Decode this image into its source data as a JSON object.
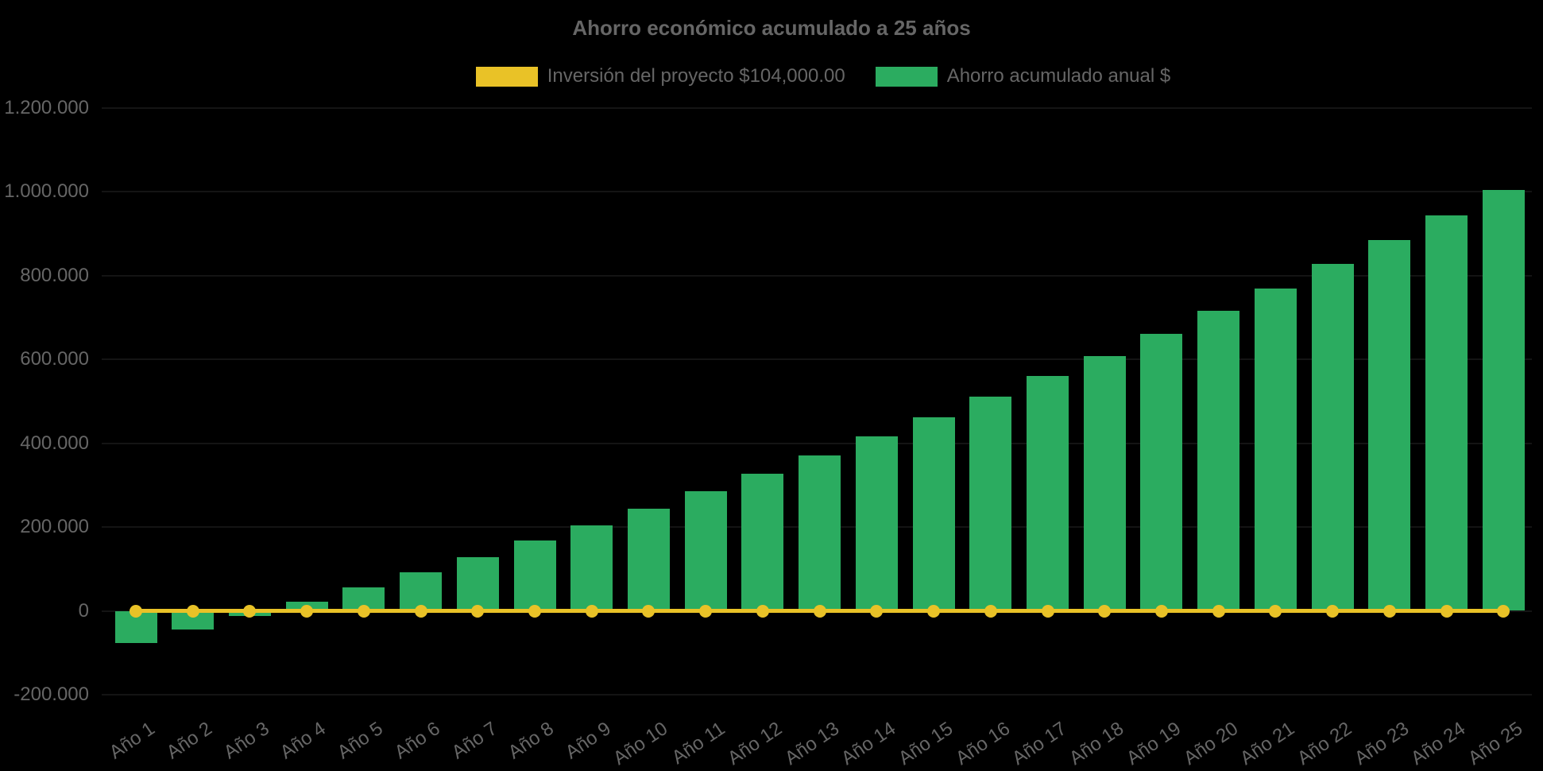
{
  "page": {
    "background": "#000000",
    "text_color": "#666666"
  },
  "chart": {
    "title": "Ahorro económico acumulado a 25 años",
    "legend": [
      {
        "label": "Inversión del proyecto $104,000.00",
        "color": "#E9C227",
        "series_type": "line"
      },
      {
        "label": "Ahorro acumulado anual $",
        "color": "#2BAC60",
        "series_type": "bar"
      }
    ]
  },
  "chart_data": {
    "type": "bar",
    "title": "Ahorro económico acumulado a 25 años",
    "categories": [
      "Año 1",
      "Año 2",
      "Año 3",
      "Año 4",
      "Año 5",
      "Año 6",
      "Año 7",
      "Año 8",
      "Año 9",
      "Año 10",
      "Año 11",
      "Año 12",
      "Año 13",
      "Año 14",
      "Año 15",
      "Año 16",
      "Año 17",
      "Año 18",
      "Año 19",
      "Año 20",
      "Año 21",
      "Año 22",
      "Año 23",
      "Año 24",
      "Año 25"
    ],
    "series": [
      {
        "name": "Inversión del proyecto $104,000.00",
        "type": "line",
        "color": "#E9C227",
        "point_style": "circle",
        "values": [
          0,
          0,
          0,
          0,
          0,
          0,
          0,
          0,
          0,
          0,
          0,
          0,
          0,
          0,
          0,
          0,
          0,
          0,
          0,
          0,
          0,
          0,
          0,
          0,
          0
        ]
      },
      {
        "name": "Ahorro acumulado anual $",
        "type": "bar",
        "color": "#2BAC60",
        "values": [
          -77000,
          -45000,
          -12000,
          22000,
          56000,
          92000,
          128000,
          167000,
          203000,
          244000,
          286000,
          327000,
          370000,
          416000,
          461000,
          510000,
          560000,
          608000,
          661000,
          715000,
          768000,
          827000,
          885000,
          944000,
          1003000
        ]
      }
    ],
    "xlabel": "",
    "ylabel": "",
    "ylim": [
      -200000,
      1200000
    ],
    "ytick_step": 200000,
    "ytick_labels": [
      "-200.000",
      "0",
      "200.000",
      "400.000",
      "600.000",
      "800.000",
      "1.000.000",
      "1.200.000"
    ],
    "x_tick_rotation_deg": -34,
    "legend_position": "top",
    "grid": false,
    "background": "transparent-black"
  }
}
